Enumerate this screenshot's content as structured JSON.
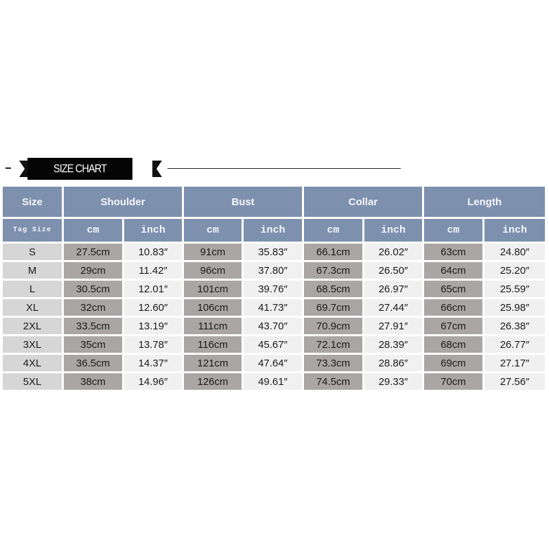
{
  "title": "SIZE CHART",
  "colors": {
    "header": "#7d90ad",
    "size_col": "#d6d6d6",
    "cm_col": "#aaa6a6",
    "inch_col": "#f0f0f0"
  },
  "headers": {
    "size": "Size",
    "groups": [
      "Shoulder",
      "Bust",
      "Collar",
      "Length"
    ],
    "tag_size": "Tag Size",
    "cm": "cm",
    "inch": "inch"
  },
  "rows": [
    {
      "size": "S",
      "cells": [
        "27.5cm",
        "10.83″",
        "91cm",
        "35.83″",
        "66.1cm",
        "26.02″",
        "63cm",
        "24.80″"
      ]
    },
    {
      "size": "M",
      "cells": [
        "29cm",
        "11.42″",
        "96cm",
        "37.80″",
        "67.3cm",
        "26.50″",
        "64cm",
        "25.20″"
      ]
    },
    {
      "size": "L",
      "cells": [
        "30.5cm",
        "12.01″",
        "101cm",
        "39.76″",
        "68.5cm",
        "26.97″",
        "65cm",
        "25.59″"
      ]
    },
    {
      "size": "XL",
      "cells": [
        "32cm",
        "12.60″",
        "106cm",
        "41.73″",
        "69.7cm",
        "27.44″",
        "66cm",
        "25.98″"
      ]
    },
    {
      "size": "2XL",
      "cells": [
        "33.5cm",
        "13.19″",
        "111cm",
        "43.70″",
        "70.9cm",
        "27.91″",
        "67cm",
        "26.38″"
      ]
    },
    {
      "size": "3XL",
      "cells": [
        "35cm",
        "13.78″",
        "116cm",
        "45.67″",
        "72.1cm",
        "28.39″",
        "68cm",
        "26.77″"
      ]
    },
    {
      "size": "4XL",
      "cells": [
        "36.5cm",
        "14.37″",
        "121cm",
        "47.64″",
        "73.3cm",
        "28.86″",
        "69cm",
        "27.17″"
      ]
    },
    {
      "size": "5XL",
      "cells": [
        "38cm",
        "14.96″",
        "126cm",
        "49.61″",
        "74.5cm",
        "29.33″",
        "70cm",
        "27.56″"
      ]
    }
  ]
}
